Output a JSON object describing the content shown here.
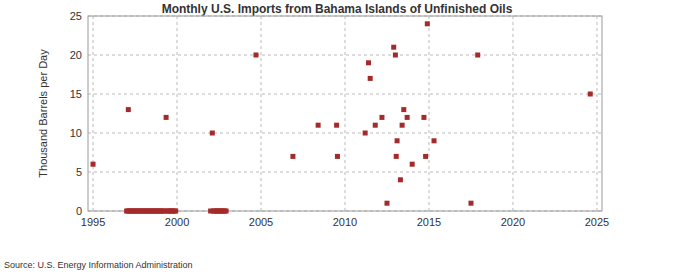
{
  "chart_data": {
    "type": "scatter",
    "title": "Monthly U.S. Imports from Bahama Islands of Unfinished Oils",
    "y_label": "Thousand Barrels per Day",
    "source": "Source: U.S. Energy Information Administration",
    "color": "#a52a2a",
    "marker": "square",
    "grid": true,
    "xlim": [
      1994.7,
      2025.3
    ],
    "xticks": [
      1995,
      2000,
      2005,
      2010,
      2015,
      2020,
      2025
    ],
    "ylim": [
      0,
      25
    ],
    "yticks": [
      0,
      5,
      10,
      15,
      20,
      25
    ],
    "x": [
      1995.0,
      1997.0,
      1997.08,
      1997.1,
      1997.17,
      1997.25,
      1997.33,
      1997.42,
      1997.5,
      1997.58,
      1997.67,
      1997.75,
      1997.83,
      1997.92,
      1998.0,
      1998.08,
      1998.17,
      1998.25,
      1998.33,
      1998.42,
      1998.5,
      1998.58,
      1998.67,
      1998.75,
      1998.83,
      1998.92,
      1999.0,
      1999.08,
      1999.17,
      1999.25,
      1999.35,
      1999.42,
      1999.5,
      1999.58,
      1999.67,
      1999.75,
      1999.83,
      1999.92,
      2002.0,
      2002.1,
      2002.17,
      2002.25,
      2002.33,
      2002.42,
      2002.5,
      2002.58,
      2002.67,
      2002.75,
      2002.83,
      2002.92,
      2004.7,
      2006.9,
      2008.4,
      2009.5,
      2009.55,
      2011.2,
      2011.4,
      2011.5,
      2011.8,
      2012.2,
      2012.5,
      2012.9,
      2013.0,
      2013.05,
      2013.1,
      2013.3,
      2013.4,
      2013.5,
      2013.7,
      2014.0,
      2014.7,
      2014.8,
      2014.9,
      2015.3,
      2017.5,
      2017.9,
      2024.6
    ],
    "values": [
      6,
      0,
      0,
      13,
      0,
      0,
      0,
      0,
      0,
      0,
      0,
      0,
      0,
      0,
      0,
      0,
      0,
      0,
      0,
      0,
      0,
      0,
      0,
      0,
      0,
      0,
      0,
      0,
      0,
      0,
      12,
      0,
      0,
      0,
      0,
      0,
      0,
      0,
      0,
      10,
      0,
      0,
      0,
      0,
      0,
      0,
      0,
      0,
      0,
      0,
      20,
      7,
      11,
      11,
      7,
      10,
      19,
      17,
      11,
      12,
      1,
      21,
      20,
      7,
      9,
      4,
      11,
      13,
      12,
      6,
      12,
      7,
      24,
      9,
      1,
      20,
      15
    ]
  }
}
